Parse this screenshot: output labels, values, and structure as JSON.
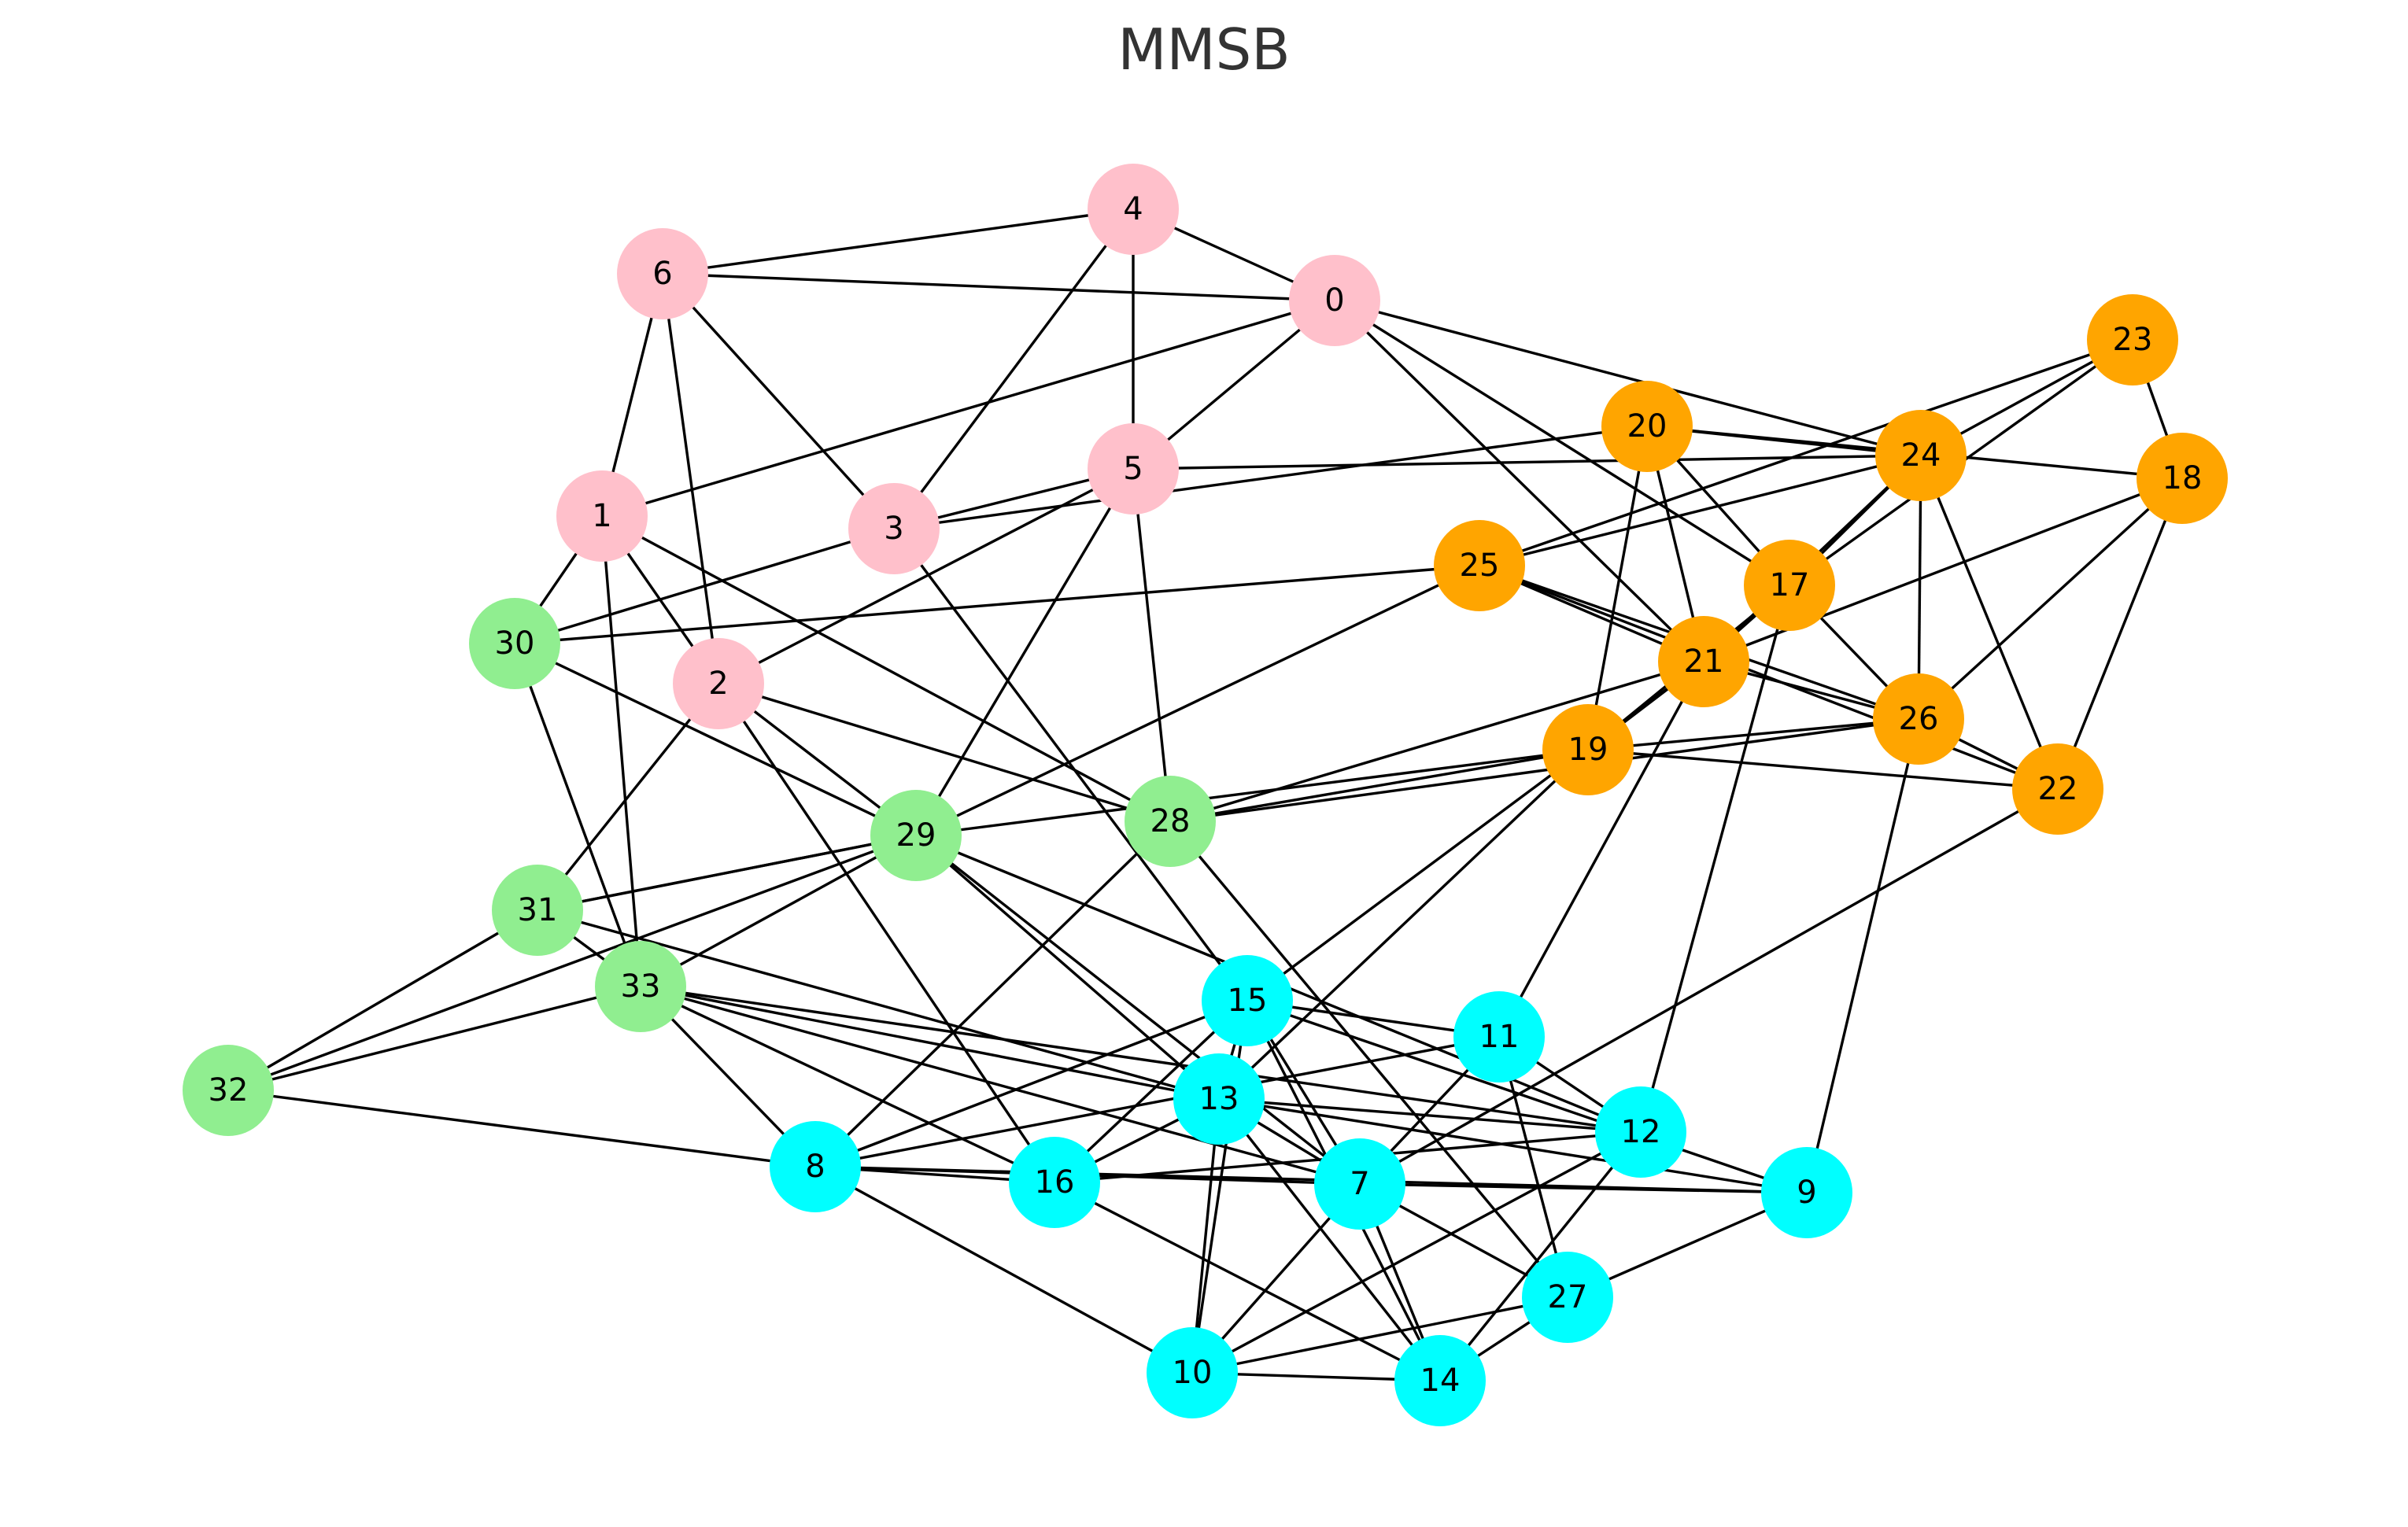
{
  "title": "MMSB",
  "community_colors": {
    "pink": "#ffc0cb",
    "orange": "#ffa500",
    "green": "#90ee90",
    "cyan": "#00ffff"
  },
  "edge_color": "#000000",
  "nodes": [
    {
      "id": "0",
      "label": "0",
      "community": "pink"
    },
    {
      "id": "1",
      "label": "1",
      "community": "pink"
    },
    {
      "id": "2",
      "label": "2",
      "community": "pink"
    },
    {
      "id": "3",
      "label": "3",
      "community": "pink"
    },
    {
      "id": "4",
      "label": "4",
      "community": "pink"
    },
    {
      "id": "5",
      "label": "5",
      "community": "pink"
    },
    {
      "id": "6",
      "label": "6",
      "community": "pink"
    },
    {
      "id": "7",
      "label": "7",
      "community": "cyan"
    },
    {
      "id": "8",
      "label": "8",
      "community": "cyan"
    },
    {
      "id": "9",
      "label": "9",
      "community": "cyan"
    },
    {
      "id": "10",
      "label": "10",
      "community": "cyan"
    },
    {
      "id": "11",
      "label": "11",
      "community": "cyan"
    },
    {
      "id": "12",
      "label": "12",
      "community": "cyan"
    },
    {
      "id": "13",
      "label": "13",
      "community": "cyan"
    },
    {
      "id": "14",
      "label": "14",
      "community": "cyan"
    },
    {
      "id": "15",
      "label": "15",
      "community": "cyan"
    },
    {
      "id": "16",
      "label": "16",
      "community": "cyan"
    },
    {
      "id": "17",
      "label": "17",
      "community": "orange"
    },
    {
      "id": "18",
      "label": "18",
      "community": "orange"
    },
    {
      "id": "19",
      "label": "19",
      "community": "orange"
    },
    {
      "id": "20",
      "label": "20",
      "community": "orange"
    },
    {
      "id": "21",
      "label": "21",
      "community": "orange"
    },
    {
      "id": "22",
      "label": "22",
      "community": "orange"
    },
    {
      "id": "23",
      "label": "23",
      "community": "orange"
    },
    {
      "id": "24",
      "label": "24",
      "community": "orange"
    },
    {
      "id": "25",
      "label": "25",
      "community": "orange"
    },
    {
      "id": "26",
      "label": "26",
      "community": "orange"
    },
    {
      "id": "27",
      "label": "27",
      "community": "cyan"
    },
    {
      "id": "28",
      "label": "28",
      "community": "green"
    },
    {
      "id": "29",
      "label": "29",
      "community": "green"
    },
    {
      "id": "30",
      "label": "30",
      "community": "green"
    },
    {
      "id": "31",
      "label": "31",
      "community": "green"
    },
    {
      "id": "32",
      "label": "32",
      "community": "green"
    },
    {
      "id": "33",
      "label": "33",
      "community": "green"
    }
  ],
  "edges": [
    [
      "4",
      "6"
    ],
    [
      "4",
      "0"
    ],
    [
      "4",
      "5"
    ],
    [
      "4",
      "3"
    ],
    [
      "6",
      "0"
    ],
    [
      "6",
      "1"
    ],
    [
      "6",
      "2"
    ],
    [
      "6",
      "3"
    ],
    [
      "0",
      "5"
    ],
    [
      "0",
      "1"
    ],
    [
      "0",
      "24"
    ],
    [
      "0",
      "17"
    ],
    [
      "0",
      "21"
    ],
    [
      "5",
      "3"
    ],
    [
      "5",
      "2"
    ],
    [
      "5",
      "29"
    ],
    [
      "5",
      "28"
    ],
    [
      "5",
      "24"
    ],
    [
      "3",
      "30"
    ],
    [
      "3",
      "20"
    ],
    [
      "3",
      "15"
    ],
    [
      "1",
      "30"
    ],
    [
      "1",
      "2"
    ],
    [
      "1",
      "33"
    ],
    [
      "1",
      "28"
    ],
    [
      "2",
      "31"
    ],
    [
      "2",
      "16"
    ],
    [
      "2",
      "29"
    ],
    [
      "2",
      "28"
    ],
    [
      "30",
      "25"
    ],
    [
      "30",
      "29"
    ],
    [
      "30",
      "33"
    ],
    [
      "29",
      "31"
    ],
    [
      "29",
      "33"
    ],
    [
      "29",
      "32"
    ],
    [
      "29",
      "19"
    ],
    [
      "29",
      "25"
    ],
    [
      "29",
      "13"
    ],
    [
      "29",
      "12"
    ],
    [
      "29",
      "7"
    ],
    [
      "28",
      "8"
    ],
    [
      "28",
      "19"
    ],
    [
      "28",
      "27"
    ],
    [
      "28",
      "26"
    ],
    [
      "28",
      "21"
    ],
    [
      "31",
      "32"
    ],
    [
      "31",
      "33"
    ],
    [
      "31",
      "13"
    ],
    [
      "31",
      "29"
    ],
    [
      "33",
      "32"
    ],
    [
      "33",
      "8"
    ],
    [
      "33",
      "7"
    ],
    [
      "33",
      "16"
    ],
    [
      "33",
      "13"
    ],
    [
      "33",
      "12"
    ],
    [
      "32",
      "8"
    ],
    [
      "8",
      "16"
    ],
    [
      "8",
      "7"
    ],
    [
      "8",
      "9"
    ],
    [
      "8",
      "15"
    ],
    [
      "8",
      "11"
    ],
    [
      "8",
      "10"
    ],
    [
      "16",
      "15"
    ],
    [
      "16",
      "13"
    ],
    [
      "16",
      "14"
    ],
    [
      "16",
      "12"
    ],
    [
      "15",
      "13"
    ],
    [
      "15",
      "10"
    ],
    [
      "15",
      "7"
    ],
    [
      "15",
      "14"
    ],
    [
      "15",
      "11"
    ],
    [
      "15",
      "9"
    ],
    [
      "15",
      "21"
    ],
    [
      "13",
      "10"
    ],
    [
      "13",
      "7"
    ],
    [
      "13",
      "14"
    ],
    [
      "13",
      "12"
    ],
    [
      "13",
      "9"
    ],
    [
      "13",
      "19"
    ],
    [
      "11",
      "7"
    ],
    [
      "11",
      "27"
    ],
    [
      "11",
      "12"
    ],
    [
      "11",
      "21"
    ],
    [
      "12",
      "10"
    ],
    [
      "12",
      "14"
    ],
    [
      "12",
      "17"
    ],
    [
      "7",
      "9"
    ],
    [
      "7",
      "10"
    ],
    [
      "7",
      "14"
    ],
    [
      "7",
      "27"
    ],
    [
      "7",
      "22"
    ],
    [
      "9",
      "27"
    ],
    [
      "9",
      "26"
    ],
    [
      "10",
      "14"
    ],
    [
      "10",
      "27"
    ],
    [
      "27",
      "14"
    ],
    [
      "20",
      "17"
    ],
    [
      "20",
      "21"
    ],
    [
      "20",
      "24"
    ],
    [
      "20",
      "18"
    ],
    [
      "20",
      "19"
    ],
    [
      "24",
      "17"
    ],
    [
      "24",
      "26"
    ],
    [
      "24",
      "25"
    ],
    [
      "24",
      "22"
    ],
    [
      "24",
      "21"
    ],
    [
      "23",
      "18"
    ],
    [
      "23",
      "17"
    ],
    [
      "23",
      "24"
    ],
    [
      "23",
      "25"
    ],
    [
      "18",
      "26"
    ],
    [
      "18",
      "22"
    ],
    [
      "18",
      "21"
    ],
    [
      "25",
      "21"
    ],
    [
      "25",
      "26"
    ],
    [
      "25",
      "22"
    ],
    [
      "17",
      "21"
    ],
    [
      "17",
      "26"
    ],
    [
      "17",
      "19"
    ],
    [
      "21",
      "19"
    ],
    [
      "21",
      "26"
    ],
    [
      "19",
      "22"
    ],
    [
      "19",
      "26"
    ],
    [
      "26",
      "22"
    ]
  ]
}
